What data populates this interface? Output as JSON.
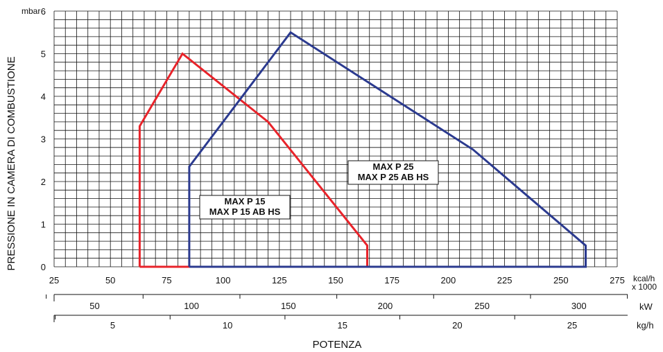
{
  "chart_data": {
    "type": "line",
    "xlabel": "POTENZA",
    "ylabel": "PRESSIONE IN CAMERA DI COMBUSTIONE",
    "y_unit": "mbar",
    "x_unit_primary": "kcal/h",
    "x_unit_multiplier": "x 1000",
    "xlim": [
      25,
      275
    ],
    "ylim": [
      0,
      6
    ],
    "x_ticks": [
      "25",
      "50",
      "75",
      "100",
      "125",
      "150",
      "175",
      "200",
      "225",
      "250",
      "275"
    ],
    "y_ticks": [
      "0",
      "1",
      "2",
      "3",
      "4",
      "5",
      "6"
    ],
    "grid": true,
    "series": [
      {
        "name": "MAX P 15 / MAX P 15 AB HS",
        "label_lines": [
          "MAX P 15",
          "MAX P 15 AB HS"
        ],
        "color": "#e8232a",
        "points": [
          [
            63,
            0
          ],
          [
            63,
            3.3
          ],
          [
            82,
            5.0
          ],
          [
            120,
            3.4
          ],
          [
            164,
            0.5
          ],
          [
            164,
            0
          ],
          [
            63,
            0
          ]
        ]
      },
      {
        "name": "MAX P 25 / MAX P 25 AB HS",
        "label_lines": [
          "MAX P 25",
          "MAX P 25 AB HS"
        ],
        "color": "#2b3a8f",
        "points": [
          [
            85,
            0
          ],
          [
            85,
            2.35
          ],
          [
            130,
            5.5
          ],
          [
            211,
            2.75
          ],
          [
            261,
            0.5
          ],
          [
            261,
            0
          ],
          [
            85,
            0
          ]
        ]
      }
    ],
    "secondary_axes": [
      {
        "unit": "kW",
        "labels": [
          {
            "value": 50,
            "text": "50"
          },
          {
            "value": 100,
            "text": "100"
          },
          {
            "value": 150,
            "text": "150"
          },
          {
            "value": 200,
            "text": "200"
          },
          {
            "value": 250,
            "text": "250"
          },
          {
            "value": 300,
            "text": "300"
          }
        ]
      },
      {
        "unit": "kg/h",
        "labels": [
          {
            "value": 5,
            "text": "5"
          },
          {
            "value": 10,
            "text": "10"
          },
          {
            "value": 15,
            "text": "15"
          },
          {
            "value": 20,
            "text": "20"
          },
          {
            "value": 25,
            "text": "25"
          }
        ]
      }
    ]
  }
}
